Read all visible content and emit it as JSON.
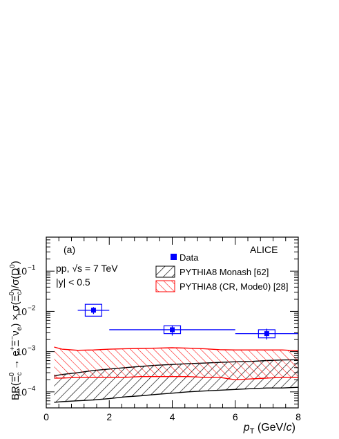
{
  "chart_data": {
    "type": "scatter",
    "xlabel": "p_T (GeV/c)",
    "xlim": [
      0,
      8
    ],
    "ylim": [
      4e-05,
      0.7
    ],
    "yscale": "log",
    "panel_label": "(a)",
    "experiment_label": "ALICE",
    "annotations": [
      "pp, √s = 7 TeV",
      "|y| < 0.5"
    ],
    "x_tick_labels": [
      "0",
      "2",
      "4",
      "6",
      "8"
    ],
    "y_tick_labels": [
      {
        "value": 0.1,
        "base": "10",
        "exp": "−1"
      },
      {
        "value": 0.01,
        "base": "10",
        "exp": "−2"
      },
      {
        "value": 0.001,
        "base": "10",
        "exp": "−3"
      },
      {
        "value": 0.0001,
        "base": "10",
        "exp": "−4"
      }
    ],
    "legend": {
      "placement": "top-right",
      "entries": [
        "Data",
        "PYTHIA8 Monash [62]",
        "PYTHIA8 (CR, Mode0) [28]"
      ]
    },
    "data_color": "#0000ff",
    "monash_color": "#000000",
    "cr_color": "#ff0000",
    "series": [
      {
        "name": "Data",
        "points": [
          {
            "x": 1.5,
            "y": 0.0107,
            "xlo": 1.0,
            "xhi": 2.0,
            "stat_lo": 0.0086,
            "stat_hi": 0.0128,
            "sys_lo": 0.0076,
            "sys_hi": 0.015
          },
          {
            "x": 4.0,
            "y": 0.0035,
            "xlo": 2.0,
            "xhi": 6.0,
            "stat_lo": 0.0025,
            "stat_hi": 0.0045,
            "sys_lo": 0.0028,
            "sys_hi": 0.0044
          },
          {
            "x": 7.0,
            "y": 0.0028,
            "xlo": 6.0,
            "xhi": 8.0,
            "stat_lo": 0.002,
            "stat_hi": 0.0037,
            "sys_lo": 0.0022,
            "sys_hi": 0.0035
          }
        ]
      },
      {
        "name": "PYTHIA8 Monash [62]",
        "x": [
          0.25,
          0.5,
          1.0,
          1.5,
          2.0,
          2.5,
          3.0,
          3.5,
          4.0,
          4.5,
          5.0,
          5.5,
          6.0,
          6.5,
          7.0,
          7.5,
          8.0
        ],
        "low": [
          5.5e-05,
          5.7e-05,
          6e-05,
          6.3e-05,
          6.8e-05,
          7.5e-05,
          8e-05,
          8.7e-05,
          9.3e-05,
          0.0001,
          0.000105,
          0.00011,
          0.000115,
          0.00012,
          0.000125,
          0.000125,
          0.00013
        ],
        "high": [
          0.00025,
          0.00027,
          0.0003,
          0.00034,
          0.00037,
          0.0004,
          0.00043,
          0.00046,
          0.00048,
          0.0005,
          0.00052,
          0.00054,
          0.00056,
          0.00057,
          0.0006,
          0.00062,
          0.00063
        ]
      },
      {
        "name": "PYTHIA8 (CR, Mode0) [28]",
        "x": [
          0.25,
          0.5,
          1.0,
          1.5,
          2.0,
          2.5,
          3.0,
          3.5,
          4.0,
          4.5,
          5.0,
          5.5,
          6.0,
          6.5,
          7.0,
          7.5,
          8.0
        ],
        "low": [
          0.00022,
          0.00022,
          0.00023,
          0.00023,
          0.00023,
          0.00023,
          0.00024,
          0.00024,
          0.00024,
          0.00024,
          0.00023,
          0.00023,
          0.0002,
          0.00021,
          0.00022,
          0.00023,
          0.00023
        ],
        "high": [
          0.0013,
          0.00115,
          0.00108,
          0.0011,
          0.00115,
          0.00118,
          0.0012,
          0.00122,
          0.00125,
          0.00122,
          0.00118,
          0.00112,
          0.0011,
          0.0011,
          0.0011,
          0.0011,
          0.00105
        ]
      }
    ]
  }
}
